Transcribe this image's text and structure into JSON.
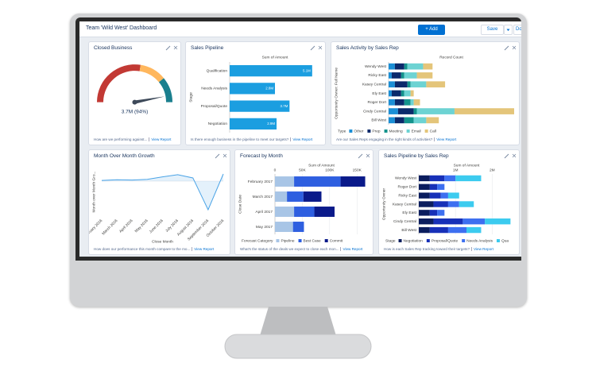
{
  "header": {
    "title": "Team 'Wild West' Dashboard",
    "add": "+ Add",
    "save": "Save",
    "done": "Done"
  },
  "panels": [
    {
      "title": "Closed Business",
      "footer": "How are we performing against...",
      "link": "View Report",
      "chart_data": {
        "type": "gauge",
        "lim": [
          0,
          100
        ],
        "value": 94,
        "value_label": "3.7M (94%)"
      }
    },
    {
      "title": "Sales Pipeline",
      "footer": "Is there enough business in the pipeline to meet our targets?",
      "link": "View Report",
      "chart_data": {
        "type": "hbar",
        "xlabel": "Sum of Amount",
        "ylabel": "Stage",
        "categories": [
          "Qualification",
          "Needs Analysis",
          "Proposal/Quote",
          "Negotiation"
        ],
        "values": [
          5100000,
          2800000,
          3700000,
          2900000
        ],
        "value_labels": [
          "5.1M",
          "2.8M",
          "3.7M",
          "2.9M"
        ],
        "color": "#1b9ee0",
        "xlim": [
          0,
          5600000
        ]
      }
    },
    {
      "title": "Sales Activity by Sales Rep",
      "footer": "Are our Sales Reps engaging in the right kinds of activities?",
      "link": "View Report",
      "chart_data": {
        "type": "stacked_hbar",
        "xlabel": "Record Count",
        "ylabel": "Opportunity Owner: Full Name",
        "legend_title": "Type",
        "categories": [
          "Wendy West",
          "Ricky East",
          "Kasey Central",
          "Ely East",
          "Roger Dort",
          "Cindy Central",
          "Bill West"
        ],
        "xlim": [
          0,
          40
        ],
        "series": [
          {
            "name": "Other",
            "color": "#1b8fd6",
            "values": [
              2,
              1,
              2,
              1,
              2,
              3,
              2
            ]
          },
          {
            "name": "Prep",
            "color": "#0c2a6b",
            "values": [
              3,
              3,
              4,
              3,
              3,
              5,
              3
            ]
          },
          {
            "name": "Meeting",
            "color": "#13938c",
            "values": [
              1,
              1,
              1,
              1,
              2,
              1,
              3
            ]
          },
          {
            "name": "Email",
            "color": "#6dd3d3",
            "values": [
              5,
              4,
              5,
              2,
              1,
              12,
              4
            ]
          },
          {
            "name": "Call",
            "color": "#e4c57a",
            "values": [
              3,
              5,
              6,
              1,
              2,
              19,
              4
            ]
          }
        ]
      }
    },
    {
      "title": "Month Over Month Growth",
      "footer": "How does our performance this month compare to the mo...",
      "link": "View Report",
      "chart_data": {
        "type": "line",
        "xlabel": "Close Month",
        "ylabel": "Month over Month Gro...",
        "color": "#4aa3e6",
        "ylim": [
          -100,
          40
        ],
        "categories": [
          "February 2016",
          "March 2016",
          "April 2016",
          "May 2016",
          "June 2016",
          "July 2016",
          "August 2016",
          "September 2016",
          "October 2016"
        ],
        "values": [
          2,
          4,
          3,
          5,
          12,
          18,
          9,
          -80,
          20
        ]
      }
    },
    {
      "title": "Forecast by Month",
      "footer": "What's the status of the deals we expect to close each mon...",
      "link": "View Report",
      "chart_data": {
        "type": "stacked_hbar",
        "xlabel": "Sum of Amount",
        "ylabel": "Close Date",
        "legend_title": "Forecast Category",
        "categories": [
          "February 2017",
          "March 2017",
          "April 2017",
          "May 2017"
        ],
        "xlim": [
          0,
          170000
        ],
        "xticks": [
          0,
          {
            "value": 50000,
            "label": "50K"
          },
          {
            "value": 100000,
            "label": "100K"
          },
          {
            "value": 150000,
            "label": "150K"
          }
        ],
        "series": [
          {
            "name": "Pipeline",
            "color": "#a8c5e6",
            "values": [
              35000,
              22000,
              35000,
              33000
            ]
          },
          {
            "name": "Best Case",
            "color": "#2e5fe0",
            "values": [
              85000,
              30000,
              37000,
              20000
            ]
          },
          {
            "name": "Commit",
            "color": "#0a1a8a",
            "values": [
              45000,
              33000,
              37000,
              0
            ]
          }
        ]
      }
    },
    {
      "title": "Sales Pipeline by Sales Rep",
      "footer": "How is each Sales Rep tracking toward their targets?",
      "link": "View Report",
      "chart_data": {
        "type": "stacked_hbar",
        "xlabel": "Sum of Amount",
        "ylabel": "Opportunity Owner",
        "legend_title": "Stage",
        "categories": [
          "Wendy West",
          "Roger Dort",
          "Ricky East",
          "Kasey Central",
          "Ely East",
          "Cindy Central",
          "Bill West"
        ],
        "xlim": [
          0,
          2600000
        ],
        "xticks": [
          {
            "value": 1000000,
            "label": "1M"
          },
          {
            "value": 2000000,
            "label": "2M"
          }
        ],
        "series": [
          {
            "name": "Negotiation",
            "color": "#0b1d5e",
            "values": [
              300000,
              300000,
              300000,
              400000,
              300000,
              400000,
              300000
            ]
          },
          {
            "name": "Proposal/Quote",
            "color": "#1730b8",
            "values": [
              400000,
              200000,
              300000,
              400000,
              200000,
              800000,
              500000
            ]
          },
          {
            "name": "Needs Analysis",
            "color": "#3d6ff0",
            "values": [
              300000,
              200000,
              200000,
              300000,
              200000,
              600000,
              500000
            ]
          },
          {
            "name": "Qua",
            "color": "#3ccbef",
            "values": [
              700000,
              0,
              300000,
              400000,
              0,
              700000,
              400000
            ]
          }
        ]
      }
    }
  ]
}
